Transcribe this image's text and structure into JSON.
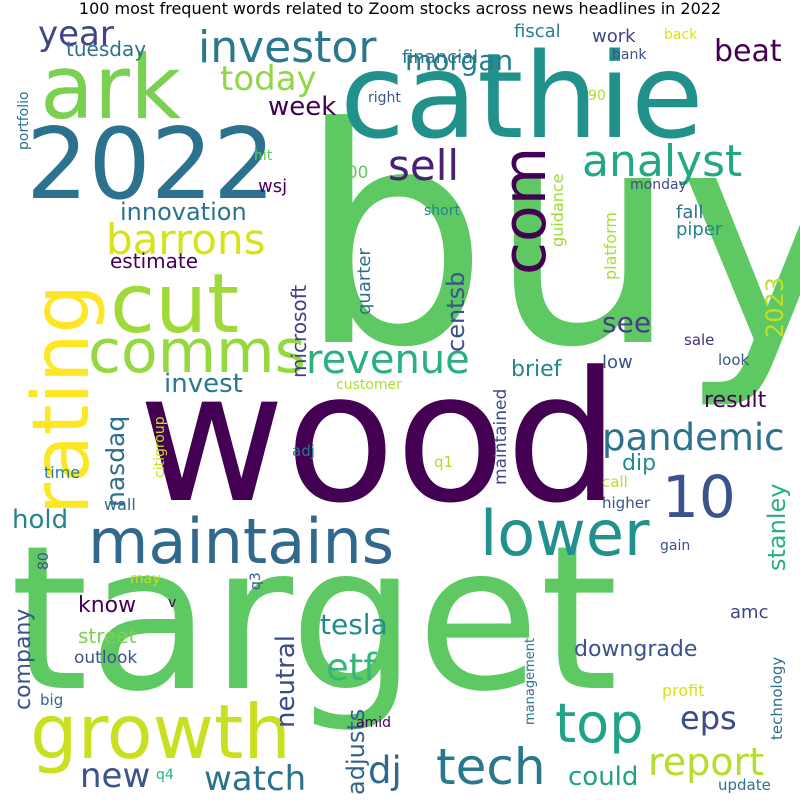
{
  "chart_data": {
    "type": "wordcloud",
    "title": "100 most frequent words related to Zoom stocks across news headlines in 2022",
    "colormap": "viridis",
    "words": [
      {
        "text": "buy",
        "color": "#5ec962"
      },
      {
        "text": "target",
        "color": "#5ec962"
      },
      {
        "text": "wood",
        "color": "#440154"
      },
      {
        "text": "cathie",
        "color": "#21918c"
      },
      {
        "text": "2022",
        "color": "#2c728e"
      },
      {
        "text": "ark",
        "color": "#7ad151"
      },
      {
        "text": "cut",
        "color": "#a0da39"
      },
      {
        "text": "rating",
        "color": "#fde725"
      },
      {
        "text": "growth",
        "color": "#c8e020"
      },
      {
        "text": "maintains",
        "color": "#31688e"
      },
      {
        "text": "lower",
        "color": "#21918c"
      },
      {
        "text": "comms",
        "color": "#95d840"
      },
      {
        "text": "com",
        "color": "#440154"
      },
      {
        "text": "10",
        "color": "#3b528b"
      },
      {
        "text": "top",
        "color": "#20a486"
      },
      {
        "text": "tech",
        "color": "#29788e"
      },
      {
        "text": "investor",
        "color": "#2a788e"
      },
      {
        "text": "analyst",
        "color": "#22a884"
      },
      {
        "text": "barrons",
        "color": "#d8e219"
      },
      {
        "text": "sell",
        "color": "#482173"
      },
      {
        "text": "revenue",
        "color": "#2ab07f"
      },
      {
        "text": "pandemic",
        "color": "#2c728e"
      },
      {
        "text": "report",
        "color": "#b5de2b"
      },
      {
        "text": "etf",
        "color": "#35b779"
      },
      {
        "text": "dj",
        "color": "#31688e"
      },
      {
        "text": "today",
        "color": "#8fd744"
      },
      {
        "text": "watch",
        "color": "#2c728e"
      },
      {
        "text": "year",
        "color": "#414487"
      },
      {
        "text": "new",
        "color": "#3b528b"
      },
      {
        "text": "eps",
        "color": "#3e4989"
      },
      {
        "text": "beat",
        "color": "#440154"
      },
      {
        "text": "morgan",
        "color": "#287d8e"
      },
      {
        "text": "innovation",
        "color": "#2c728e"
      },
      {
        "text": "centsb",
        "color": "#3b528b"
      },
      {
        "text": "see",
        "color": "#433e85"
      },
      {
        "text": "tesla",
        "color": "#238a8d"
      },
      {
        "text": "neutral",
        "color": "#3e4989"
      },
      {
        "text": "invest",
        "color": "#2a788e"
      },
      {
        "text": "nasdaq",
        "color": "#2e6e8e"
      },
      {
        "text": "hold",
        "color": "#25848e"
      },
      {
        "text": "week",
        "color": "#440154"
      },
      {
        "text": "stanley",
        "color": "#2ab07f"
      },
      {
        "text": "adjusts",
        "color": "#33638d"
      },
      {
        "text": "could",
        "color": "#1fa088"
      },
      {
        "text": "company",
        "color": "#3b528b"
      },
      {
        "text": "2023",
        "color": "#c2df23"
      },
      {
        "text": "downgrade",
        "color": "#3b528b"
      },
      {
        "text": "brief",
        "color": "#25848e"
      },
      {
        "text": "estimate",
        "color": "#440154"
      },
      {
        "text": "microsoft",
        "color": "#433e85"
      },
      {
        "text": "know",
        "color": "#440154"
      },
      {
        "text": "dip",
        "color": "#238a8d"
      },
      {
        "text": "result",
        "color": "#440154"
      },
      {
        "text": "quarter",
        "color": "#2c728e"
      },
      {
        "text": "street",
        "color": "#7ad151"
      },
      {
        "text": "tuesday",
        "color": "#2c728e"
      },
      {
        "text": "work",
        "color": "#414487"
      },
      {
        "text": "fiscal",
        "color": "#287d8e"
      },
      {
        "text": "financial",
        "color": "#2a788e"
      },
      {
        "text": "wsj",
        "color": "#440154"
      },
      {
        "text": "maintained",
        "color": "#3e4989"
      },
      {
        "text": "guidance",
        "color": "#a0da39"
      },
      {
        "text": "platform",
        "color": "#addc30"
      },
      {
        "text": "fall",
        "color": "#2c728e"
      },
      {
        "text": "piper",
        "color": "#26828e"
      },
      {
        "text": "low",
        "color": "#3b528b"
      },
      {
        "text": "amc",
        "color": "#414487"
      },
      {
        "text": "outlook",
        "color": "#3b528b"
      },
      {
        "text": "100",
        "color": "#5ec962"
      },
      {
        "text": "customer",
        "color": "#addc30"
      },
      {
        "text": "sale",
        "color": "#472c7a"
      },
      {
        "text": "look",
        "color": "#3b528b"
      },
      {
        "text": "adj",
        "color": "#2c728e"
      },
      {
        "text": "time",
        "color": "#287d8e"
      },
      {
        "text": "wall",
        "color": "#31688e"
      },
      {
        "text": "citigroup",
        "color": "#c8e020"
      },
      {
        "text": "call",
        "color": "#b5de2b"
      },
      {
        "text": "higher",
        "color": "#3b528b"
      },
      {
        "text": "q1",
        "color": "#addc30"
      },
      {
        "text": "gain",
        "color": "#3b528b"
      },
      {
        "text": "profit",
        "color": "#d8e219"
      },
      {
        "text": "technology",
        "color": "#2c728e"
      },
      {
        "text": "management",
        "color": "#2c728e"
      },
      {
        "text": "update",
        "color": "#2c728e"
      },
      {
        "text": "big",
        "color": "#31688e"
      },
      {
        "text": "amid",
        "color": "#440154"
      },
      {
        "text": "portfolio",
        "color": "#2c728e"
      },
      {
        "text": "hit",
        "color": "#5ec962"
      },
      {
        "text": "right",
        "color": "#3b528b"
      },
      {
        "text": "90",
        "color": "#addc30"
      },
      {
        "text": "monday",
        "color": "#3e4989"
      },
      {
        "text": "short",
        "color": "#26828e"
      },
      {
        "text": "back",
        "color": "#d8e219"
      },
      {
        "text": "bank",
        "color": "#3b528b"
      },
      {
        "text": "may",
        "color": "#c2df23"
      },
      {
        "text": "v",
        "color": "#440154"
      },
      {
        "text": "q3",
        "color": "#3b528b"
      },
      {
        "text": "u",
        "color": "#5ec962"
      },
      {
        "text": "80",
        "color": "#3b528b"
      },
      {
        "text": "q4",
        "color": "#2ab07f"
      }
    ]
  }
}
